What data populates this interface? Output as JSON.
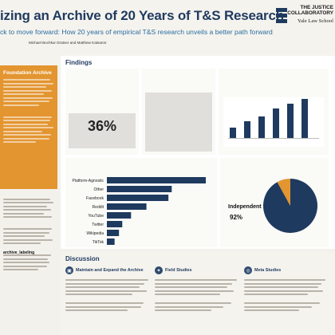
{
  "header": {
    "title": "izing an Archive of 20 Years of T&S Research",
    "subtitle": "ck to move forward: How 20 years of empirical T&S research unveils a better path forward",
    "authors": "Michael Bochkur Dratver and Matthew Katsaros",
    "logo_text": "THE JUSTICE COLLABORATORY",
    "school": "Yale Law School"
  },
  "left": {
    "panel_title": "Foundation Archive",
    "link": "archive_labeling"
  },
  "findings": {
    "title": "Findings",
    "kpi1": {
      "value": "36%",
      "label": ""
    },
    "kpi2": {
      "value": "",
      "label": ""
    },
    "independent_pct": "92%",
    "independent_label": "Independent"
  },
  "chart_data": [
    {
      "type": "bar",
      "categories": [
        "Platform-Agnostic",
        "Other",
        "Facebook",
        "Reddit",
        "YouTube",
        "Twitter",
        "Wikipedia",
        "TikTok"
      ],
      "values": [
        180,
        118,
        112,
        72,
        44,
        28,
        22,
        14
      ],
      "colors": [
        "#1f3a5f",
        "#1f3a5f",
        "#1f3a5f",
        "#1f3a5f",
        "#1f3a5f",
        "#1f3a5f",
        "#1f3a5f",
        "#1f3a5f"
      ]
    },
    {
      "type": "pie",
      "categories": [
        "Independent",
        "Other"
      ],
      "values": [
        92,
        8
      ],
      "colors": [
        "#1f3a5f",
        "#e39530"
      ]
    }
  ],
  "discussion": {
    "title": "Discussion",
    "col1": "Maintain and Expand the Archive",
    "col2": "Field Studies",
    "col3": "Meta Studies"
  },
  "colors": {
    "navy": "#1f3a5f",
    "orange": "#e39530",
    "teal": "#2a6ea0"
  }
}
